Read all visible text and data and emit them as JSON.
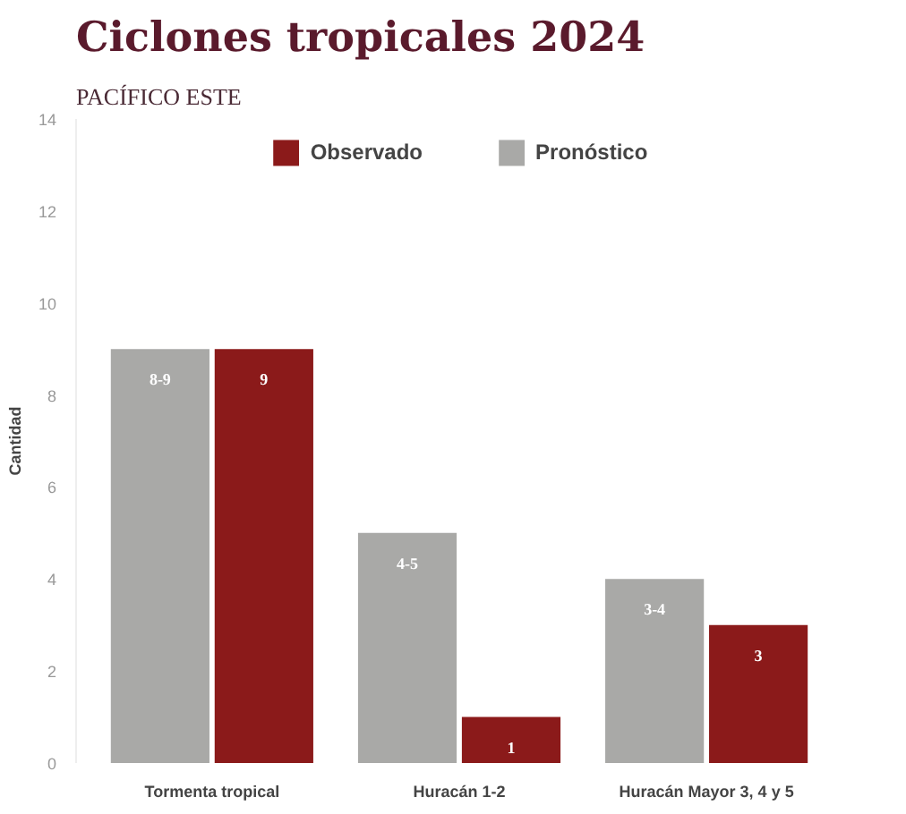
{
  "chart_data": {
    "type": "bar",
    "title": "Ciclones tropicales 2024",
    "subtitle": "PACÍFICO ESTE",
    "ylabel": "Cantidad",
    "categories": [
      "Tormenta tropical",
      "Huracán 1-2",
      "Huracán Mayor 3, 4 y 5"
    ],
    "series": [
      {
        "name": "Pronóstico",
        "color": "#a9a9a7",
        "values": [
          9,
          5,
          4
        ],
        "value_labels": [
          "8-9",
          "4-5",
          "3-4"
        ]
      },
      {
        "name": "Observado",
        "color": "#8b1a1a",
        "values": [
          9,
          1,
          3
        ],
        "value_labels": [
          "9",
          "1",
          "3"
        ]
      }
    ],
    "ylim": [
      0,
      14
    ],
    "yticks": [
      0,
      2,
      4,
      6,
      8,
      10,
      12,
      14
    ],
    "grid": false,
    "legend": "top"
  }
}
